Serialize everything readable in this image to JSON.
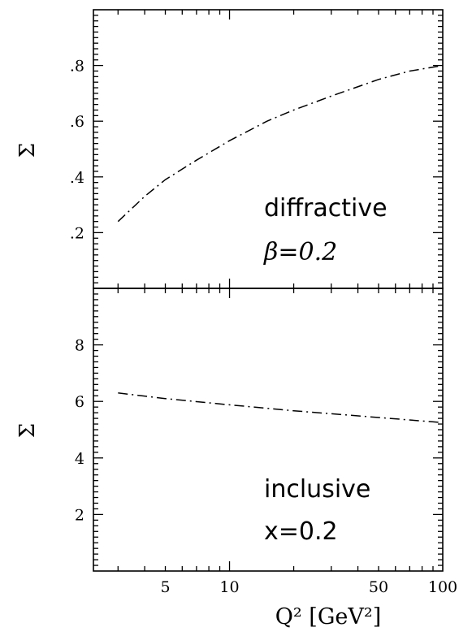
{
  "chart_data": [
    {
      "type": "line",
      "panel": "top",
      "ylabel": "Σ",
      "ylim": [
        0,
        1
      ],
      "yticks": [
        0.2,
        0.4,
        0.6,
        0.8
      ],
      "yticklabels": [
        ".2",
        ".4",
        ".6",
        ".8"
      ],
      "xscale": "log",
      "xlim": [
        2.3,
        100
      ],
      "annotations": [
        "diffractive",
        "β=0.2"
      ],
      "series": [
        {
          "style": "dash-dot",
          "x": [
            3,
            4,
            5,
            7,
            10,
            15,
            20,
            30,
            50,
            70,
            100
          ],
          "y": [
            0.24,
            0.33,
            0.39,
            0.46,
            0.53,
            0.6,
            0.64,
            0.69,
            0.75,
            0.78,
            0.8
          ]
        }
      ]
    },
    {
      "type": "line",
      "panel": "bottom",
      "ylabel": "Σ",
      "ylim": [
        0,
        10
      ],
      "yticks": [
        2,
        4,
        6,
        8
      ],
      "yticklabels": [
        "2",
        "4",
        "6",
        "8"
      ],
      "xscale": "log",
      "xlim": [
        2.3,
        100
      ],
      "xticks": [
        5,
        10,
        50,
        100
      ],
      "xticklabels": [
        "5",
        "10",
        "50",
        "100"
      ],
      "xlabel": "Q² [GeV²]",
      "annotations": [
        "inclusive",
        "x=0.2"
      ],
      "series": [
        {
          "style": "dash-dot",
          "x": [
            3,
            5,
            10,
            20,
            50,
            100
          ],
          "y": [
            6.3,
            6.1,
            5.88,
            5.67,
            5.43,
            5.25
          ]
        }
      ]
    }
  ]
}
